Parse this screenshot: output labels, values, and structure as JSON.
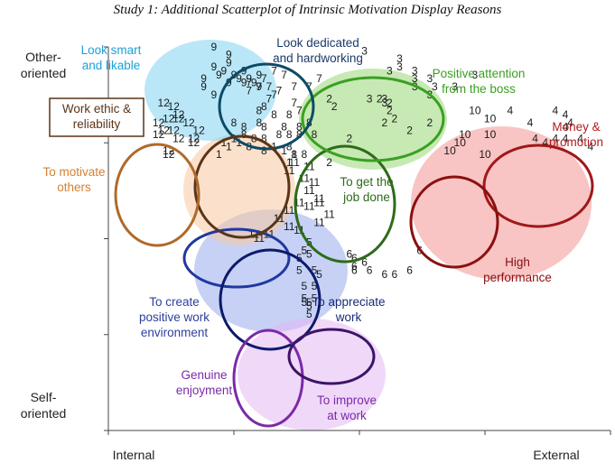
{
  "title": "Study 1: Additional Scatterplot of Intrinsic Motivation Display Reasons",
  "chart_data": {
    "type": "scatter",
    "x_axis": {
      "low_label": "Internal",
      "high_label": "External"
    },
    "y_axis": {
      "high_label": "Other-\noriented",
      "low_label": "Self-\noriented"
    },
    "grid": false,
    "legend": "none",
    "clusters": [
      {
        "id": "1",
        "label": "To create\npositive work\nenvironment",
        "color": "#2e3f9e",
        "points": [
          [
            23,
            72
          ],
          [
            24,
            71
          ],
          [
            22,
            69
          ],
          [
            25,
            73
          ],
          [
            26,
            72
          ],
          [
            33,
            71
          ],
          [
            35,
            70
          ],
          [
            37,
            69
          ],
          [
            36,
            67
          ]
        ]
      },
      {
        "id": "11",
        "label": "To appreciate\nwork",
        "color": "#0c1a6b",
        "points": [
          [
            37,
            67
          ],
          [
            40,
            66
          ],
          [
            36,
            65
          ],
          [
            39,
            63
          ],
          [
            41,
            62
          ],
          [
            40,
            60
          ],
          [
            38,
            57
          ],
          [
            42,
            58
          ],
          [
            40,
            56
          ],
          [
            36,
            55
          ],
          [
            34,
            53
          ],
          [
            36,
            51
          ],
          [
            38,
            50
          ],
          [
            42,
            52
          ],
          [
            44,
            54
          ],
          [
            42,
            57
          ],
          [
            32,
            49
          ],
          [
            30,
            48
          ],
          [
            29,
            49
          ]
        ]
      },
      {
        "id": "2",
        "label": "To get the\njob done",
        "color": "#3a7a1a",
        "points": [
          [
            44,
            83
          ],
          [
            45,
            81
          ],
          [
            54,
            83
          ],
          [
            56,
            82
          ],
          [
            56,
            80
          ],
          [
            55,
            77
          ],
          [
            57,
            78
          ],
          [
            60,
            75
          ],
          [
            64,
            77
          ],
          [
            48,
            73
          ],
          [
            44,
            67
          ]
        ]
      },
      {
        "id": "3",
        "label": "Positive attention\nfrom the boss",
        "color": "#4aae2a",
        "points": [
          [
            51,
            95
          ],
          [
            58,
            93
          ],
          [
            58,
            91
          ],
          [
            56,
            90
          ],
          [
            61,
            90
          ],
          [
            61,
            88
          ],
          [
            64,
            88
          ],
          [
            61,
            86
          ],
          [
            65,
            86
          ],
          [
            64,
            84
          ],
          [
            69,
            86
          ],
          [
            73,
            89
          ],
          [
            52,
            83
          ],
          [
            55,
            83
          ],
          [
            55,
            82
          ]
        ]
      },
      {
        "id": "4",
        "label": "Money &\npromotion",
        "color": "#b01c1c",
        "points": [
          [
            80,
            80
          ],
          [
            89,
            80
          ],
          [
            91,
            79
          ],
          [
            84,
            77
          ],
          [
            92,
            77
          ],
          [
            91,
            76
          ],
          [
            85,
            73
          ],
          [
            87,
            72
          ],
          [
            89,
            73
          ],
          [
            91,
            73
          ],
          [
            94,
            73
          ],
          [
            96,
            71
          ]
        ]
      },
      {
        "id": "5",
        "label": "Genuine\nenjoyment",
        "color": "#6a1fa0",
        "points": [
          [
            40,
            47
          ],
          [
            39,
            45
          ],
          [
            40,
            44
          ],
          [
            38,
            43
          ],
          [
            38,
            40
          ],
          [
            41,
            40
          ],
          [
            42,
            39
          ],
          [
            39,
            36
          ],
          [
            41,
            36
          ],
          [
            39,
            33
          ],
          [
            41,
            33
          ],
          [
            39,
            32
          ],
          [
            40,
            32
          ],
          [
            40,
            31
          ],
          [
            40,
            29
          ]
        ]
      },
      {
        "id": "6",
        "label": "To improve\nat work",
        "color": "#3d1466",
        "points": [
          [
            48,
            44
          ],
          [
            49,
            43
          ],
          [
            62,
            45
          ],
          [
            49,
            41
          ],
          [
            51,
            42
          ],
          [
            49,
            40
          ],
          [
            52,
            40
          ],
          [
            55,
            39
          ],
          [
            57,
            39
          ],
          [
            60,
            40
          ]
        ]
      },
      {
        "id": "7",
        "label": "Look dedicated\nand hardworking",
        "color": "#0a4060",
        "points": [
          [
            33,
            90
          ],
          [
            35,
            89
          ],
          [
            31,
            88
          ],
          [
            32,
            86
          ],
          [
            28,
            87
          ],
          [
            30,
            86
          ],
          [
            34,
            85
          ],
          [
            37,
            86
          ],
          [
            40,
            86
          ],
          [
            42,
            88
          ],
          [
            33,
            84
          ],
          [
            28,
            85
          ],
          [
            32,
            83
          ],
          [
            37,
            82
          ],
          [
            38,
            80
          ]
        ]
      },
      {
        "id": "8",
        "label": "Work ethic &\nreliability",
        "color": "#5a3418",
        "points": [
          [
            31,
            81
          ],
          [
            30,
            80
          ],
          [
            33,
            79
          ],
          [
            36,
            79
          ],
          [
            25,
            77
          ],
          [
            27,
            76
          ],
          [
            30,
            77
          ],
          [
            31,
            76
          ],
          [
            35,
            76
          ],
          [
            38,
            76
          ],
          [
            40,
            77
          ],
          [
            27,
            74
          ],
          [
            29,
            73
          ],
          [
            31,
            73
          ],
          [
            34,
            74
          ],
          [
            36,
            74
          ],
          [
            38,
            74
          ],
          [
            41,
            74
          ],
          [
            28,
            71
          ],
          [
            31,
            70
          ],
          [
            37,
            69
          ],
          [
            39,
            69
          ],
          [
            36,
            71
          ]
        ]
      },
      {
        "id": "9",
        "label": "Look smart\nand likable",
        "color": "#17a9e0",
        "points": [
          [
            21,
            96
          ],
          [
            24,
            94
          ],
          [
            24,
            92
          ],
          [
            21,
            91
          ],
          [
            22,
            89
          ],
          [
            23,
            90
          ],
          [
            25,
            89
          ],
          [
            27,
            90
          ],
          [
            28,
            88
          ],
          [
            30,
            89
          ],
          [
            29,
            87
          ],
          [
            30,
            86
          ],
          [
            24,
            87
          ],
          [
            27,
            87
          ],
          [
            19,
            88
          ],
          [
            19,
            86
          ],
          [
            21,
            84
          ],
          [
            26,
            88
          ]
        ]
      },
      {
        "id": "10",
        "label": "High\nperformance",
        "color": "#8a1010",
        "points": [
          [
            73,
            80
          ],
          [
            76,
            78
          ],
          [
            71,
            74
          ],
          [
            76,
            74
          ],
          [
            70,
            72
          ],
          [
            68,
            70
          ],
          [
            75,
            69
          ]
        ]
      },
      {
        "id": "12",
        "label": "To motivate\nothers",
        "color": "#b0692a",
        "points": [
          [
            11,
            82
          ],
          [
            13,
            81
          ],
          [
            14,
            79
          ],
          [
            12,
            78
          ],
          [
            14,
            78
          ],
          [
            10,
            77
          ],
          [
            11,
            75
          ],
          [
            13,
            75
          ],
          [
            10,
            74
          ],
          [
            14,
            73
          ],
          [
            17,
            73
          ],
          [
            18,
            75
          ],
          [
            16,
            77
          ],
          [
            17,
            72
          ],
          [
            12,
            70
          ],
          [
            12,
            69
          ]
        ]
      }
    ]
  }
}
